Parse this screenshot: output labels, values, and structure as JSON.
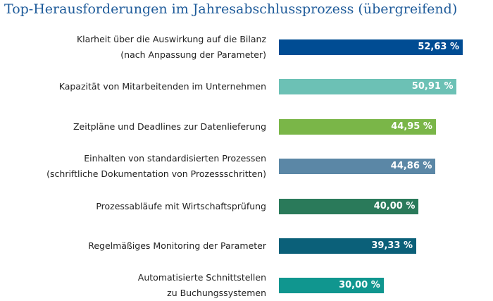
{
  "chart_data": {
    "type": "bar",
    "orientation": "horizontal",
    "title": "Top-Herausforderungen im Jahresabschlussprozess (übergreifend)",
    "categories": [
      "Klarheit über die Auswirkung auf die Bilanz\n(nach Anpassung der Parameter)",
      "Kapazität von Mitarbeitenden im Unternehmen",
      "Zeitpläne und Deadlines zur Datenlieferung",
      "Einhalten von standardisierten Prozessen\n(schriftliche Dokumentation von Prozessschritten)",
      "Prozessabläufe mit Wirtschaftsprüfung",
      "Regelmäßiges Monitoring der Parameter",
      "Automatisierte Schnittstellen\nzu Buchungssystemen"
    ],
    "values": [
      52.63,
      50.91,
      44.95,
      44.86,
      40.0,
      39.33,
      30.0
    ],
    "value_labels": [
      "52,63 %",
      "50,91 %",
      "44,95 %",
      "44,86 %",
      "40,00 %",
      "39,33 %",
      "30,00 %"
    ],
    "colors": [
      "#004c93",
      "#6cc1b5",
      "#7ab648",
      "#5b87a6",
      "#2a7a5a",
      "#0b6079",
      "#10968f"
    ]
  }
}
